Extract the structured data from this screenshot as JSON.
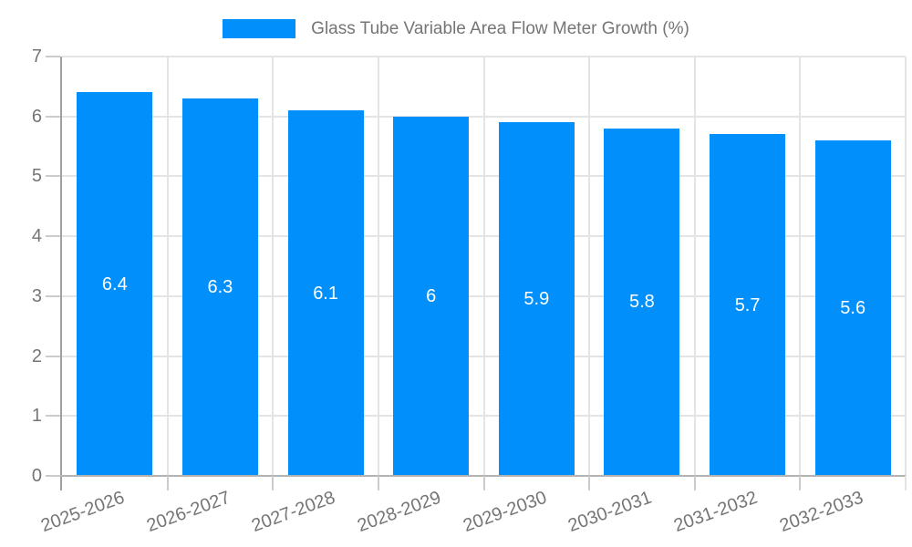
{
  "chart_data": {
    "type": "bar",
    "title": "",
    "legend_position": "top",
    "grid": true,
    "categories": [
      "2025-2026",
      "2026-2027",
      "2027-2028",
      "2028-2029",
      "2029-2030",
      "2030-2031",
      "2031-2032",
      "2032-2033"
    ],
    "series": [
      {
        "name": "Glass Tube Variable Area Flow Meter Growth (%)",
        "values": [
          6.4,
          6.3,
          6.1,
          6.0,
          5.9,
          5.8,
          5.7,
          5.6
        ]
      }
    ],
    "data_labels": [
      "6.4",
      "6.3",
      "6.1",
      "6",
      "5.9",
      "5.8",
      "5.7",
      "5.6"
    ],
    "xlabel": "",
    "ylabel": "",
    "ylim": [
      0,
      7
    ],
    "yticks": [
      0,
      1,
      2,
      3,
      4,
      5,
      6,
      7
    ],
    "ytick_labels": [
      "0",
      "1",
      "2",
      "3",
      "4",
      "5",
      "6",
      "7"
    ],
    "colors": {
      "bar": "#008FFB",
      "data_label": "#FFFFFF",
      "axis_text": "#757575",
      "legend_text": "#757575",
      "gridline": "#E4E4E4",
      "y_axis_line": "#A0A0A0",
      "x_axis_line": "#B3B3B3",
      "tick": "#CCCCCC",
      "background": "#FFFFFF"
    }
  }
}
